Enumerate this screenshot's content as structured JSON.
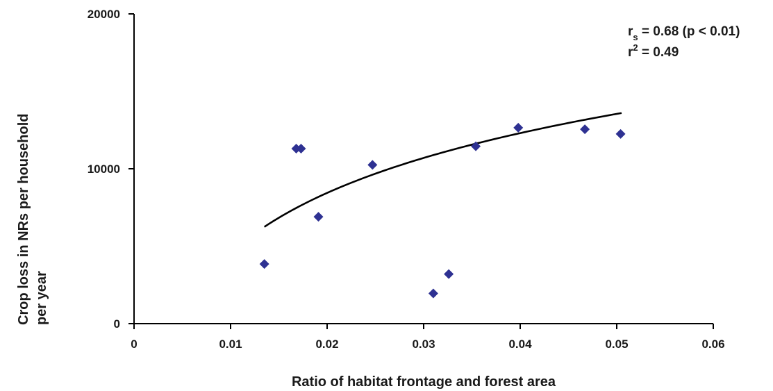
{
  "chart_data": {
    "type": "scatter",
    "title": "",
    "xlabel": "Ratio of habitat frontage and forest area",
    "ylabel_lines": [
      "Crop loss in NRs per household",
      "per year"
    ],
    "xlim": [
      0,
      0.06
    ],
    "ylim": [
      0,
      20000
    ],
    "x_ticks": [
      0,
      0.01,
      0.02,
      0.03,
      0.04,
      0.05,
      0.06
    ],
    "x_tick_labels": [
      "0",
      "0.01",
      "0.02",
      "0.03",
      "0.04",
      "0.05",
      "0.06"
    ],
    "y_ticks": [
      0,
      10000,
      20000
    ],
    "y_tick_labels": [
      "0",
      "10000",
      "20000"
    ],
    "grid": false,
    "legend": "none",
    "marker_color": "#2e3192",
    "line_color": "#000000",
    "points": [
      {
        "x": 0.0135,
        "y": 3850
      },
      {
        "x": 0.0168,
        "y": 11300
      },
      {
        "x": 0.0173,
        "y": 11300
      },
      {
        "x": 0.0191,
        "y": 6900
      },
      {
        "x": 0.0247,
        "y": 10250
      },
      {
        "x": 0.031,
        "y": 1950
      },
      {
        "x": 0.0326,
        "y": 3200
      },
      {
        "x": 0.0354,
        "y": 11450
      },
      {
        "x": 0.0398,
        "y": 12650
      },
      {
        "x": 0.0467,
        "y": 12550
      },
      {
        "x": 0.0504,
        "y": 12250
      }
    ],
    "trendline": {
      "type": "log",
      "x_range": [
        0.0135,
        0.0505
      ],
      "points": [
        {
          "x": 0.0135,
          "y": 6250
        },
        {
          "x": 0.0505,
          "y": 13600
        }
      ]
    },
    "annotations": {
      "rs": {
        "main": "r",
        "sub": "s",
        "rest": " = 0.68 (p < 0.01)"
      },
      "r2": {
        "main": "r",
        "sup": "2",
        "rest": " = 0.49"
      }
    }
  }
}
